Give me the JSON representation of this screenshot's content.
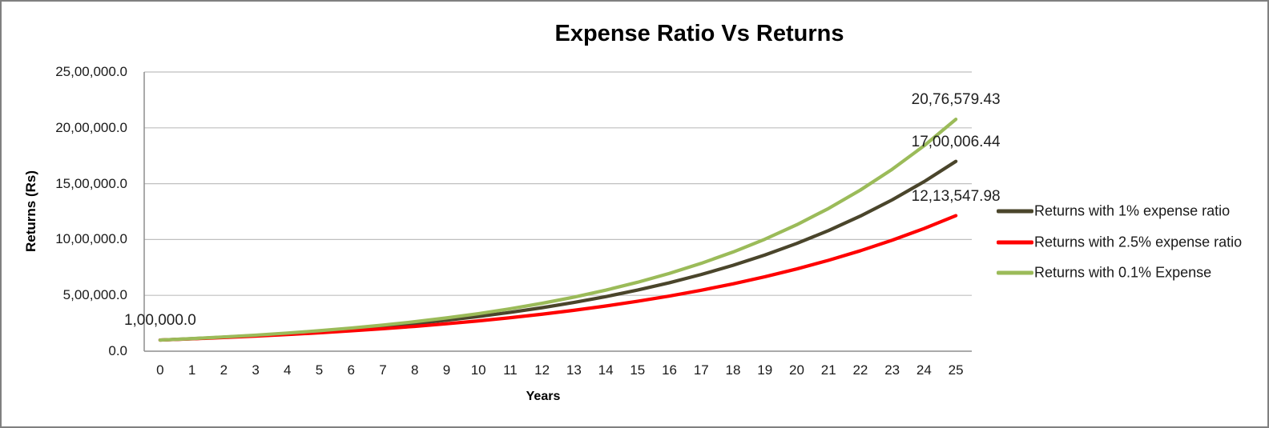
{
  "chart_data": {
    "type": "line",
    "title": "Expense Ratio Vs Returns",
    "xlabel": "Years",
    "ylabel": "Returns (Rs)",
    "categories": [
      "0",
      "1",
      "2",
      "3",
      "4",
      "5",
      "6",
      "7",
      "8",
      "9",
      "10",
      "11",
      "12",
      "13",
      "14",
      "15",
      "16",
      "17",
      "18",
      "19",
      "20",
      "21",
      "22",
      "23",
      "24",
      "25"
    ],
    "ylim": [
      0,
      2500000
    ],
    "grid": true,
    "legend_position": "right",
    "y_ticks": [
      {
        "value": 0,
        "label": "0.0"
      },
      {
        "value": 500000,
        "label": "5,00,000.0"
      },
      {
        "value": 1000000,
        "label": "10,00,000.0"
      },
      {
        "value": 1500000,
        "label": "15,00,000.0"
      },
      {
        "value": 2000000,
        "label": "20,00,000.0"
      },
      {
        "value": 2500000,
        "label": "25,00,000.0"
      }
    ],
    "series": [
      {
        "name": "Returns with 1% expense ratio",
        "color": "#4A452B",
        "values": [
          100000,
          112000,
          125440,
          140492.8,
          157351.94,
          176234.17,
          197382.27,
          221068.14,
          247596.32,
          277307.88,
          310584.82,
          347855.0,
          389597.6,
          436349.31,
          488711.23,
          547356.58,
          613039.37,
          686604.09,
          768996.58,
          861276.17,
          964629.31,
          1080384.83,
          1210031.01,
          1355234.73,
          1517862.89,
          1700006.44
        ]
      },
      {
        "name": "Returns with 2.5% expense ratio",
        "color": "#FF0000",
        "values": [
          100000,
          110500,
          122102.5,
          134923.26,
          149090.21,
          164744.68,
          182042.87,
          201157.37,
          222278.89,
          245618.18,
          271408.09,
          299905.94,
          331396.06,
          366192.64,
          404642.87,
          447130.37,
          494079.06,
          545957.37,
          603282.89,
          666627.59,
          736623.49,
          813968.95,
          899435.69,
          993876.44,
          1098233.47,
          1213547.98
        ]
      },
      {
        "name": "Returns with 0.1% Expense",
        "color": "#9BBB59",
        "values": [
          100000,
          112900,
          127464.1,
          143906.97,
          162470.97,
          183429.72,
          207092.16,
          233807.05,
          263968.15,
          298020.05,
          336464.63,
          379868.57,
          428871.62,
          484196.05,
          546657.35,
          617176.14,
          696791.87,
          786678.02,
          888159.48,
          1002732.05,
          1132084.49,
          1278123.39,
          1443001.3,
          1629148.47,
          1839308.63,
          2076579.43
        ]
      }
    ],
    "annotations": [
      {
        "text": "1,00,000.0",
        "series": 0,
        "index": 0
      },
      {
        "text": "20,76,579.43",
        "series": 2,
        "index": 25
      },
      {
        "text": "17,00,006.44",
        "series": 0,
        "index": 25
      },
      {
        "text": "12,13,547.98",
        "series": 1,
        "index": 25
      }
    ]
  }
}
